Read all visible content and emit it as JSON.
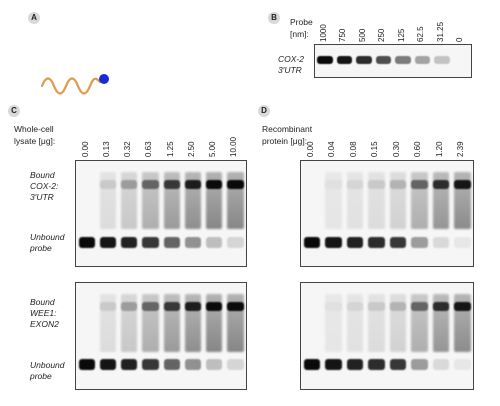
{
  "panels": {
    "a": {
      "letter": "A",
      "probe_color": "#1a2bd6",
      "strand_color": "#e09a4b"
    },
    "b": {
      "letter": "B",
      "axis_label_line1": "Probe",
      "axis_label_line2": "[nm]:",
      "row_label_line1": "COX-2",
      "row_label_line2": "3′UTR",
      "lanes": [
        "1000",
        "750",
        "500",
        "250",
        "125",
        "62.5",
        "31.25",
        "0"
      ],
      "band_intensity": [
        1.0,
        0.95,
        0.85,
        0.7,
        0.5,
        0.32,
        0.18,
        0.0
      ]
    },
    "c": {
      "letter": "C",
      "axis_label_line1": "Whole-cell",
      "axis_label_line2": "lysate [μg]:",
      "lanes": [
        "0.00",
        "0.13",
        "0.32",
        "0.63",
        "1.25",
        "2.50",
        "5.00",
        "10.00"
      ],
      "bound_fraction": [
        0.0,
        0.15,
        0.35,
        0.6,
        0.8,
        0.92,
        1.0,
        1.0
      ],
      "unbound_fraction": [
        1.0,
        0.95,
        0.9,
        0.8,
        0.6,
        0.4,
        0.2,
        0.1
      ],
      "top_gel": {
        "bound_line1": "Bound",
        "bound_line2": "COX-2:",
        "bound_line3": "3′UTR"
      },
      "bottom_gel": {
        "bound_line1": "Bound",
        "bound_line2": "WEE1:",
        "bound_line3": "EXON2"
      },
      "unbound_line1": "Unbound",
      "unbound_line2": "probe"
    },
    "d": {
      "letter": "D",
      "axis_label_line1": "Recombinant",
      "axis_label_line2": "protein [μg]:",
      "lanes": [
        "0.00",
        "0.04",
        "0.08",
        "0.15",
        "0.30",
        "0.60",
        "1.20",
        "2.39"
      ],
      "bound_fraction": [
        0.0,
        0.05,
        0.1,
        0.15,
        0.25,
        0.6,
        0.85,
        0.95
      ],
      "unbound_fraction": [
        1.0,
        0.95,
        0.9,
        0.85,
        0.8,
        0.35,
        0.08,
        0.02
      ]
    }
  }
}
